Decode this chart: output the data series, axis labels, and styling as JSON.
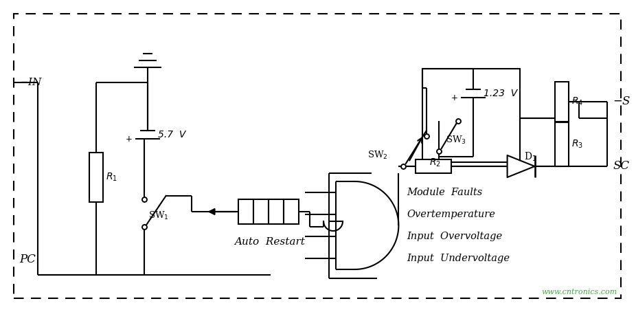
{
  "bg": "#ffffff",
  "lc": "#000000",
  "watermark": "www.cntronics.com",
  "input_labels": [
    "Input  Undervoltage",
    "Input  Overvoltage",
    "Overtemperature",
    "Module  Faults"
  ]
}
